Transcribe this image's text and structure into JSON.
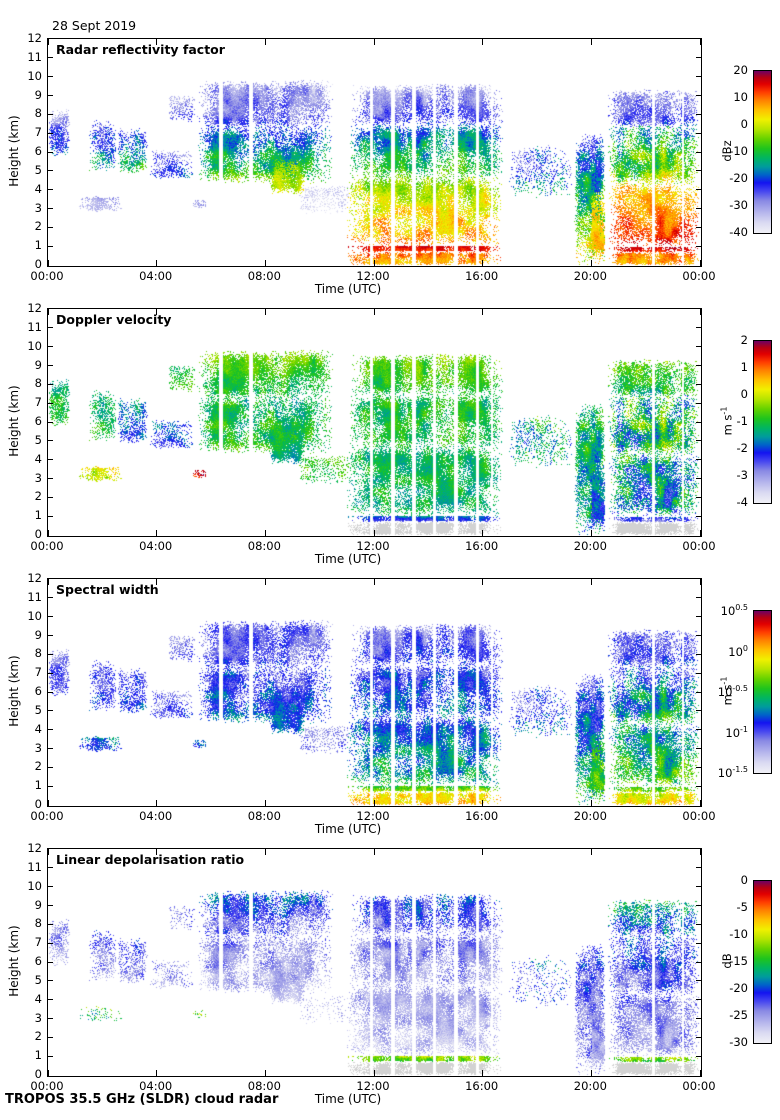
{
  "page": {
    "date": "28 Sept 2019",
    "footer": "TROPOS 35.5 GHz (SLDR) cloud radar"
  },
  "chart_data": {
    "type": "heatmap",
    "description": "Four time-height panels from a 35.5 GHz cloud radar on 28 Sept 2019",
    "x": {
      "label": "Time (UTC)",
      "tick_hours": [
        0,
        4,
        8,
        12,
        16,
        20,
        24
      ],
      "tick_labels": [
        "00:00",
        "04:00",
        "08:00",
        "12:00",
        "16:00",
        "20:00",
        "00:00"
      ],
      "range_hours": [
        0,
        24
      ]
    },
    "y": {
      "label": "Height (km)",
      "ticks": [
        0,
        1,
        2,
        3,
        4,
        5,
        6,
        7,
        8,
        9,
        10,
        11,
        12
      ],
      "range": [
        0,
        12
      ]
    },
    "grid": false,
    "colormap": [
      [
        0.0,
        "#f0f0f6"
      ],
      [
        0.06,
        "#dcdcf2"
      ],
      [
        0.13,
        "#b4b4ec"
      ],
      [
        0.2,
        "#8888e4"
      ],
      [
        0.26,
        "#4444f0"
      ],
      [
        0.31,
        "#1414f0"
      ],
      [
        0.36,
        "#0064c8"
      ],
      [
        0.41,
        "#009c9c"
      ],
      [
        0.46,
        "#00b464"
      ],
      [
        0.52,
        "#1ec41e"
      ],
      [
        0.58,
        "#64d200"
      ],
      [
        0.64,
        "#b4e400"
      ],
      [
        0.7,
        "#f0f000"
      ],
      [
        0.76,
        "#ffc000"
      ],
      [
        0.82,
        "#ff8000"
      ],
      [
        0.87,
        "#ff3c00"
      ],
      [
        0.92,
        "#e10000"
      ],
      [
        0.96,
        "#b40014"
      ],
      [
        1.0,
        "#6e0064"
      ]
    ],
    "clutter_color": "#d2d2d2",
    "panels": [
      {
        "title": "Radar reflectivity factor",
        "field": "r",
        "colorbar": {
          "unit_base": "dBz",
          "unit_sup": "",
          "range": [
            -40,
            20
          ],
          "ticks": [
            {
              "label": "20",
              "value": 20
            },
            {
              "label": "10",
              "value": 10
            },
            {
              "label": "0",
              "value": 0
            },
            {
              "label": "-10",
              "value": -10
            },
            {
              "label": "-20",
              "value": -20
            },
            {
              "label": "-30",
              "value": -30
            },
            {
              "label": "-40",
              "value": -40
            }
          ]
        }
      },
      {
        "title": "Doppler velocity",
        "field": "v",
        "colorbar": {
          "unit_base": "m s",
          "unit_sup": "-1",
          "range": [
            -4,
            2
          ],
          "ticks": [
            {
              "label": "2",
              "value": 2
            },
            {
              "label": "1",
              "value": 1
            },
            {
              "label": "0",
              "value": 0
            },
            {
              "label": "-1",
              "value": -1
            },
            {
              "label": "-2",
              "value": -2
            },
            {
              "label": "-3",
              "value": -3
            },
            {
              "label": "-4",
              "value": -4
            }
          ]
        }
      },
      {
        "title": "Spectral width",
        "field": "w",
        "colorbar": {
          "unit_base": "m s",
          "unit_sup": "-1",
          "range": [
            -1.5,
            0.5
          ],
          "log": true,
          "ticks": [
            {
              "base": "10",
              "sup": "0.5",
              "value": 0.5
            },
            {
              "base": "10",
              "sup": "0",
              "value": 0
            },
            {
              "base": "10",
              "sup": "-0.5",
              "value": -0.5
            },
            {
              "base": "10",
              "sup": "-1",
              "value": -1
            },
            {
              "base": "10",
              "sup": "-1.5",
              "value": -1.5
            }
          ]
        }
      },
      {
        "title": "Linear depolarisation ratio",
        "field": "l",
        "colorbar": {
          "unit_base": "dB",
          "unit_sup": "",
          "range": [
            -30,
            0
          ],
          "ticks": [
            {
              "label": "0",
              "value": 0
            },
            {
              "label": "-5",
              "value": -5
            },
            {
              "label": "-10",
              "value": -10
            },
            {
              "label": "-15",
              "value": -15
            },
            {
              "label": "-20",
              "value": -20
            },
            {
              "label": "-25",
              "value": -25
            },
            {
              "label": "-30",
              "value": -30
            }
          ]
        }
      }
    ],
    "gap_columns_hours": [
      [
        6.35,
        0.14
      ],
      [
        7.45,
        0.12
      ],
      [
        11.9,
        0.1
      ],
      [
        12.68,
        0.12
      ],
      [
        13.45,
        0.12
      ],
      [
        14.22,
        0.12
      ],
      [
        15.0,
        0.12
      ],
      [
        15.78,
        0.12
      ],
      [
        16.33,
        0.07
      ],
      [
        20.53,
        0.1
      ],
      [
        22.28,
        0.12
      ],
      [
        23.35,
        0.07
      ]
    ],
    "cloud_regions": [
      {
        "t": [
          0.0,
          0.8
        ],
        "z": [
          5.8,
          8.3
        ],
        "fill": 0.6,
        "nf": [
          2.5,
          1.1
        ],
        "r": [
          -32,
          -16,
          7
        ],
        "v": [
          -1.3,
          -0.7,
          0.5
        ],
        "w": [
          -1.1,
          -0.9,
          0.2
        ],
        "l": [
          -23,
          -26,
          3,
          0.7
        ]
      },
      {
        "t": [
          1.1,
          2.7
        ],
        "z": [
          2.85,
          3.7
        ],
        "fill": 0.65,
        "nf": [
          2.2,
          1.4
        ],
        "r": [
          -30,
          -34,
          4
        ],
        "v": [
          0.3,
          -0.2,
          0.6
        ],
        "w": [
          -0.7,
          -0.95,
          0.25
        ],
        "l": [
          -13,
          -17,
          5,
          0.25
        ]
      },
      {
        "t": [
          1.5,
          2.5
        ],
        "z": [
          5.0,
          7.7
        ],
        "fill": 0.6,
        "nf": [
          2.4,
          1.0
        ],
        "r": [
          -28,
          -11,
          8
        ],
        "v": [
          -1.4,
          -0.8,
          0.5
        ],
        "w": [
          -1.05,
          -0.85,
          0.2
        ],
        "l": [
          -22,
          -25,
          3,
          0.8
        ]
      },
      {
        "t": [
          2.55,
          3.65
        ],
        "z": [
          4.9,
          7.3
        ],
        "fill": 0.7,
        "nf": [
          2.4,
          1.0
        ],
        "r": [
          -26,
          -9,
          8
        ],
        "v": [
          -1.6,
          -2.3,
          0.7
        ],
        "w": [
          -1.05,
          -0.85,
          0.2
        ],
        "l": [
          -22,
          -25,
          3,
          0.8
        ]
      },
      {
        "t": [
          3.75,
          5.35
        ],
        "z": [
          4.6,
          6.15
        ],
        "fill": 0.55,
        "nf": [
          2.2,
          1.1
        ],
        "r": [
          -29,
          -20,
          6
        ],
        "v": [
          -1.7,
          -2.4,
          0.6
        ],
        "w": [
          -1.1,
          -0.95,
          0.18
        ],
        "l": [
          -24,
          -26,
          3,
          0.6
        ]
      },
      {
        "t": [
          4.4,
          5.45
        ],
        "z": [
          7.5,
          9.1
        ],
        "fill": 0.45,
        "nf": [
          2.6,
          1.2
        ],
        "r": [
          -31,
          -23,
          5
        ],
        "v": [
          -1.0,
          -0.6,
          0.4
        ],
        "w": [
          -1.1,
          -1.0,
          0.15
        ],
        "l": [
          -22,
          -25,
          3,
          0.5
        ]
      },
      {
        "t": [
          5.3,
          5.8
        ],
        "z": [
          3.05,
          3.5
        ],
        "fill": 0.55,
        "nf": [
          3.0,
          2.0
        ],
        "r": [
          -30,
          -33,
          4
        ],
        "v": [
          1.8,
          1.1,
          0.6
        ],
        "w": [
          -0.75,
          -0.95,
          0.2
        ],
        "l": [
          -12,
          -16,
          6,
          0.4
        ]
      },
      {
        "t": [
          5.45,
          10.5
        ],
        "z": [
          7.2,
          9.85
        ],
        "fill": 0.85,
        "nf": [
          2.0,
          0.9
        ],
        "r": [
          -33,
          -23,
          6
        ],
        "v": [
          -0.5,
          -1.1,
          0.45
        ],
        "w": [
          -1.1,
          -0.95,
          0.2
        ],
        "l": [
          -20,
          -24,
          4,
          0.85
        ]
      },
      {
        "t": [
          5.45,
          10.45
        ],
        "z": [
          4.35,
          7.45
        ],
        "fill": 0.9,
        "nf": [
          1.8,
          0.9
        ],
        "r": [
          -22,
          -6,
          7
        ],
        "v": [
          -1.2,
          -0.9,
          0.6
        ],
        "w": [
          -1.0,
          -0.8,
          0.25
        ],
        "l": [
          -24,
          -27,
          3,
          0.9
        ]
      },
      {
        "t": [
          8.15,
          9.45
        ],
        "z": [
          3.8,
          5.7
        ],
        "fill": 0.92,
        "nf": [
          1.8,
          0.9
        ],
        "r": [
          -6,
          1,
          5
        ],
        "v": [
          -1.0,
          -1.4,
          0.5
        ],
        "w": [
          -0.9,
          -0.72,
          0.2
        ],
        "l": [
          -25,
          -27,
          2,
          0.9
        ]
      },
      {
        "t": [
          9.2,
          11.1
        ],
        "z": [
          2.75,
          4.25
        ],
        "fill": 0.35,
        "nf": [
          2.0,
          1.2
        ],
        "r": [
          -34,
          -37,
          3
        ],
        "v": [
          -0.6,
          -1.0,
          0.5
        ],
        "w": [
          -1.15,
          -1.05,
          0.15
        ],
        "l": [
          -26,
          -27,
          2,
          0.35
        ]
      },
      {
        "t": [
          11.15,
          16.75
        ],
        "z": [
          7.4,
          9.65
        ],
        "fill": 0.85,
        "nf": [
          2.2,
          0.9
        ],
        "r": [
          -32,
          -23,
          6
        ],
        "v": [
          -0.4,
          -1.0,
          0.5
        ],
        "w": [
          -1.1,
          -0.92,
          0.22
        ],
        "l": [
          -20,
          -24,
          4,
          0.85
        ]
      },
      {
        "t": [
          11.05,
          16.75
        ],
        "z": [
          4.6,
          7.6
        ],
        "fill": 0.97,
        "nf": [
          1.9,
          0.9
        ],
        "r": [
          -20,
          -7,
          7
        ],
        "v": [
          -1.05,
          -1.0,
          0.55
        ],
        "w": [
          -0.98,
          -0.78,
          0.25
        ],
        "l": [
          -24,
          -26,
          3,
          0.97
        ]
      },
      {
        "t": [
          10.95,
          16.7
        ],
        "z": [
          1.02,
          4.85
        ],
        "fill": 1.0,
        "nf": [
          1.7,
          0.9
        ],
        "r": [
          -4,
          9,
          6
        ],
        "v": [
          -1.1,
          -1.2,
          0.5
        ],
        "w": [
          -0.85,
          -0.55,
          0.25
        ],
        "l": [
          -25,
          -27,
          2.5
        ]
      },
      {
        "t": [
          10.95,
          16.7
        ],
        "z": [
          0.72,
          1.06
        ],
        "fill": 1.0,
        "nf": [
          3.0,
          2.0
        ],
        "r": [
          16,
          12,
          3
        ],
        "v": [
          -1.6,
          -2.6,
          0.5
        ],
        "w": [
          -0.5,
          -0.2,
          0.2
        ],
        "l": [
          -11,
          -14,
          3
        ]
      },
      {
        "t": [
          10.95,
          16.7
        ],
        "z": [
          0.0,
          0.74
        ],
        "fill": 1.0,
        "nf": [
          3.0,
          2.0
        ],
        "r": [
          10,
          6,
          5
        ],
        "v": "G",
        "w": [
          -0.12,
          0.05,
          0.18
        ],
        "l": "G"
      },
      {
        "t": [
          16.95,
          19.3
        ],
        "z": [
          3.6,
          6.4
        ],
        "fill": 0.3,
        "nf": [
          2.6,
          1.2
        ],
        "r": [
          -26,
          -17,
          10
        ],
        "v": [
          -1.2,
          -1.7,
          0.9
        ],
        "w": [
          -1.05,
          -0.85,
          0.3
        ],
        "l": [
          -20,
          -24,
          5,
          0.5
        ]
      },
      {
        "t": [
          19.35,
          20.5
        ],
        "z": [
          0.0,
          7.1
        ],
        "fill": 0.8,
        "nf": [
          2.6,
          0.9
        ],
        "r": [
          -24,
          2,
          9
        ],
        "v": [
          -1.0,
          -1.6,
          0.8
        ],
        "w": [
          -1.0,
          -0.5,
          0.3
        ],
        "l": [
          -21,
          -26,
          4,
          0.85
        ]
      },
      {
        "t": [
          19.95,
          20.5
        ],
        "z": [
          0.3,
          4.0
        ],
        "fill": 0.95,
        "nf": [
          2.4,
          1.0
        ],
        "r": [
          1,
          8,
          4
        ],
        "v": [
          -1.5,
          -2.2,
          0.7
        ],
        "w": [
          -0.6,
          -0.3,
          0.25
        ],
        "l": [
          -24,
          -26,
          3
        ]
      },
      {
        "t": [
          20.6,
          23.95
        ],
        "z": [
          7.3,
          9.35
        ],
        "fill": 0.78,
        "nf": [
          2.2,
          0.9
        ],
        "r": [
          -31,
          -22,
          6
        ],
        "v": [
          -0.6,
          -1.1,
          0.7
        ],
        "w": [
          -1.1,
          -0.9,
          0.25
        ],
        "l": [
          -16,
          -21,
          5,
          0.8
        ]
      },
      {
        "t": [
          20.6,
          23.95
        ],
        "z": [
          4.2,
          7.5
        ],
        "fill": 0.92,
        "nf": [
          2.0,
          0.9
        ],
        "r": [
          -14,
          -2,
          10
        ],
        "v": [
          -1.0,
          -1.2,
          1.3
        ],
        "w": [
          -0.9,
          -0.55,
          0.35
        ],
        "l": [
          -20,
          -24,
          4,
          0.92
        ]
      },
      {
        "t": [
          20.6,
          23.95
        ],
        "z": [
          0.95,
          4.4
        ],
        "fill": 0.97,
        "nf": [
          1.8,
          0.9
        ],
        "r": [
          4,
          14,
          5
        ],
        "v": [
          -1.3,
          -1.8,
          1.2
        ],
        "w": [
          -0.7,
          -0.4,
          0.3
        ],
        "l": [
          -23,
          -26,
          3,
          0.95
        ]
      },
      {
        "t": [
          20.6,
          23.95
        ],
        "z": [
          0.7,
          1.0
        ],
        "fill": 1.0,
        "nf": [
          3.0,
          2.0
        ],
        "r": [
          17,
          13,
          3
        ],
        "v": [
          -2.0,
          -2.8,
          0.6
        ],
        "w": [
          -0.45,
          -0.2,
          0.2
        ],
        "l": [
          -11,
          -14,
          3
        ]
      },
      {
        "t": [
          20.6,
          23.95
        ],
        "z": [
          0.0,
          0.72
        ],
        "fill": 1.0,
        "nf": [
          3.0,
          2.0
        ],
        "r": [
          11,
          7,
          5
        ],
        "v": "G",
        "w": [
          -0.15,
          0.02,
          0.2
        ],
        "l": "G"
      }
    ]
  }
}
